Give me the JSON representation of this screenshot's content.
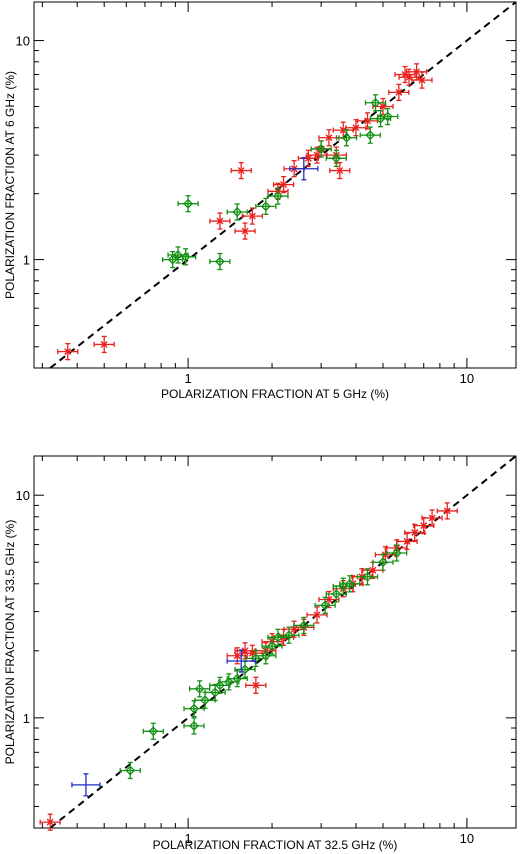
{
  "colors": {
    "red": "#e8201e",
    "green": "#149014",
    "blue": "#1c2cc8",
    "line": "#000000",
    "frame": "#000000"
  },
  "chart_data": [
    {
      "type": "scatter",
      "xlabel": "POLARIZATION  FRACTION  AT  5 GHz  (%)",
      "ylabel": "POLARIZATION  FRACTION  AT  6 GHz  (%)",
      "xscale": "log",
      "yscale": "log",
      "xlim": [
        0.28,
        15
      ],
      "ylim": [
        0.32,
        15
      ],
      "xticklabels": [
        "1",
        "10"
      ],
      "yticklabels": [
        "1",
        "10"
      ],
      "reference_line": "y = x (dashed)",
      "series": [
        {
          "color": "red",
          "marker": "x",
          "points": [
            [
              0.37,
              0.38
            ],
            [
              0.5,
              0.41
            ],
            [
              1.3,
              1.5
            ],
            [
              1.6,
              1.35
            ],
            [
              1.7,
              1.58
            ],
            [
              1.55,
              2.55
            ],
            [
              2.1,
              2.05
            ],
            [
              2.2,
              2.2
            ],
            [
              2.4,
              2.6
            ],
            [
              2.7,
              2.9
            ],
            [
              2.9,
              3.0
            ],
            [
              3.0,
              3.2
            ],
            [
              3.2,
              3.6
            ],
            [
              3.4,
              3.0
            ],
            [
              3.5,
              2.55
            ],
            [
              3.6,
              3.9
            ],
            [
              4.0,
              4.0
            ],
            [
              4.4,
              4.3
            ],
            [
              5.0,
              5.0
            ],
            [
              5.7,
              5.8
            ],
            [
              6.0,
              7.0
            ],
            [
              6.2,
              6.8
            ],
            [
              6.6,
              7.2
            ],
            [
              6.9,
              6.6
            ]
          ]
        },
        {
          "color": "green",
          "marker": "diamond",
          "points": [
            [
              0.88,
              1.0
            ],
            [
              0.92,
              1.05
            ],
            [
              0.98,
              1.03
            ],
            [
              1.0,
              1.8
            ],
            [
              1.3,
              0.98
            ],
            [
              1.5,
              1.65
            ],
            [
              1.9,
              1.75
            ],
            [
              2.1,
              1.95
            ],
            [
              3.0,
              3.2
            ],
            [
              3.4,
              2.9
            ],
            [
              3.7,
              3.6
            ],
            [
              4.5,
              3.7
            ],
            [
              4.7,
              5.2
            ],
            [
              4.9,
              4.4
            ],
            [
              5.2,
              4.5
            ]
          ]
        },
        {
          "color": "blue",
          "marker": "plus",
          "points": [
            [
              2.6,
              2.6
            ]
          ]
        }
      ]
    },
    {
      "type": "scatter",
      "xlabel": "POLARIZATION  FRACTION  AT  32.5 GHz  (%)",
      "ylabel": "POLARIZATION  FRACTION  AT  33.5 GHz  (%)",
      "xscale": "log",
      "yscale": "log",
      "xlim": [
        0.28,
        15
      ],
      "ylim": [
        0.32,
        15
      ],
      "xticklabels": [
        "1",
        "10"
      ],
      "yticklabels": [
        "1",
        "10"
      ],
      "reference_line": "y = x (dashed)",
      "series": [
        {
          "color": "red",
          "marker": "x",
          "points": [
            [
              0.32,
              0.34
            ],
            [
              1.5,
              1.9
            ],
            [
              1.6,
              2.0
            ],
            [
              1.7,
              1.95
            ],
            [
              1.75,
              1.4
            ],
            [
              1.9,
              2.0
            ],
            [
              2.0,
              2.2
            ],
            [
              2.2,
              2.3
            ],
            [
              2.4,
              2.5
            ],
            [
              2.6,
              2.55
            ],
            [
              2.9,
              2.9
            ],
            [
              3.2,
              3.4
            ],
            [
              3.6,
              3.8
            ],
            [
              3.9,
              4.0
            ],
            [
              4.2,
              4.3
            ],
            [
              4.6,
              4.6
            ],
            [
              5.1,
              5.4
            ],
            [
              5.6,
              5.8
            ],
            [
              6.1,
              6.2
            ],
            [
              6.5,
              6.8
            ],
            [
              7.0,
              7.3
            ],
            [
              7.5,
              7.9
            ],
            [
              8.5,
              8.5
            ]
          ]
        },
        {
          "color": "green",
          "marker": "diamond",
          "points": [
            [
              0.62,
              0.58
            ],
            [
              0.75,
              0.87
            ],
            [
              1.05,
              0.92
            ],
            [
              1.05,
              1.1
            ],
            [
              1.1,
              1.35
            ],
            [
              1.15,
              1.2
            ],
            [
              1.25,
              1.3
            ],
            [
              1.3,
              1.4
            ],
            [
              1.4,
              1.45
            ],
            [
              1.5,
              1.5
            ],
            [
              1.6,
              1.65
            ],
            [
              1.75,
              1.85
            ],
            [
              1.9,
              1.9
            ],
            [
              2.0,
              2.1
            ],
            [
              2.1,
              2.3
            ],
            [
              2.3,
              2.35
            ],
            [
              2.6,
              2.6
            ],
            [
              3.1,
              3.2
            ],
            [
              3.4,
              3.6
            ],
            [
              3.6,
              3.9
            ],
            [
              3.8,
              4.0
            ],
            [
              4.4,
              4.3
            ],
            [
              5.0,
              5.0
            ],
            [
              5.6,
              5.5
            ]
          ]
        },
        {
          "color": "blue",
          "marker": "plus",
          "points": [
            [
              0.43,
              0.5
            ],
            [
              1.55,
              1.8
            ]
          ]
        }
      ]
    }
  ]
}
